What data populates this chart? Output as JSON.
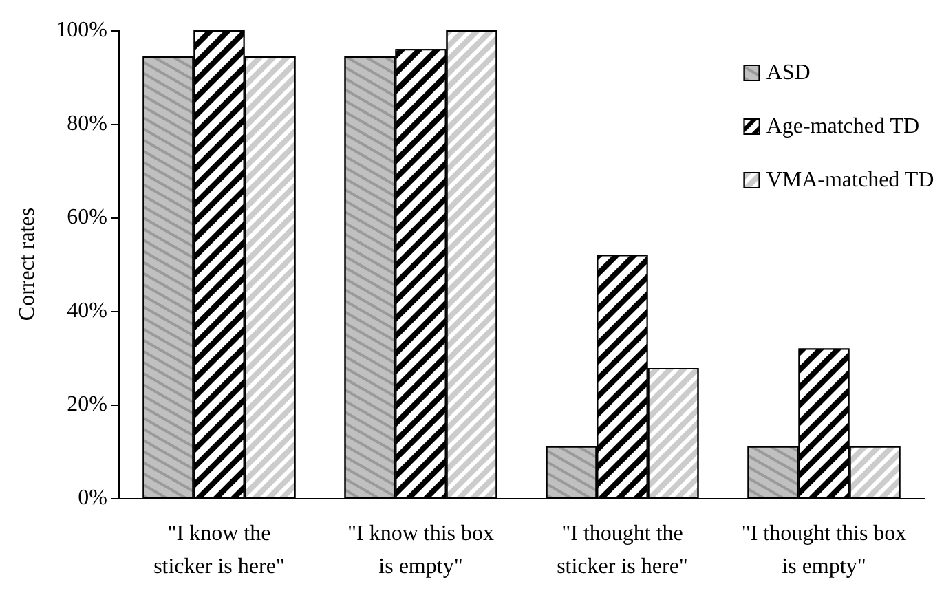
{
  "chart_data": {
    "type": "bar",
    "ylabel": "Correct rates",
    "categories": [
      "\"I know the\nsticker is here\"",
      "\"I know this box\nis empty\"",
      "\"I thought the\nsticker is here\"",
      "\"I thought this box\nis empty\""
    ],
    "series": [
      {
        "name": "ASD",
        "color": "#c0c0c0",
        "values": [
          94.4,
          94.4,
          11.1,
          11.1
        ]
      },
      {
        "name": "Age-matched TD",
        "color": "#000000",
        "values": [
          100,
          96,
          52,
          32
        ]
      },
      {
        "name": "VMA-matched TD",
        "color": "#ffffff",
        "values": [
          94.4,
          100,
          27.8,
          11.1
        ]
      }
    ],
    "ylim": [
      0,
      100
    ],
    "yticks": [
      {
        "value": 0,
        "label": "0%"
      },
      {
        "value": 20,
        "label": "20%"
      },
      {
        "value": 40,
        "label": "40%"
      },
      {
        "value": 60,
        "label": "60%"
      },
      {
        "value": 80,
        "label": "80%"
      },
      {
        "value": 100,
        "label": "100%"
      }
    ],
    "grid": false,
    "legend": "top right"
  }
}
